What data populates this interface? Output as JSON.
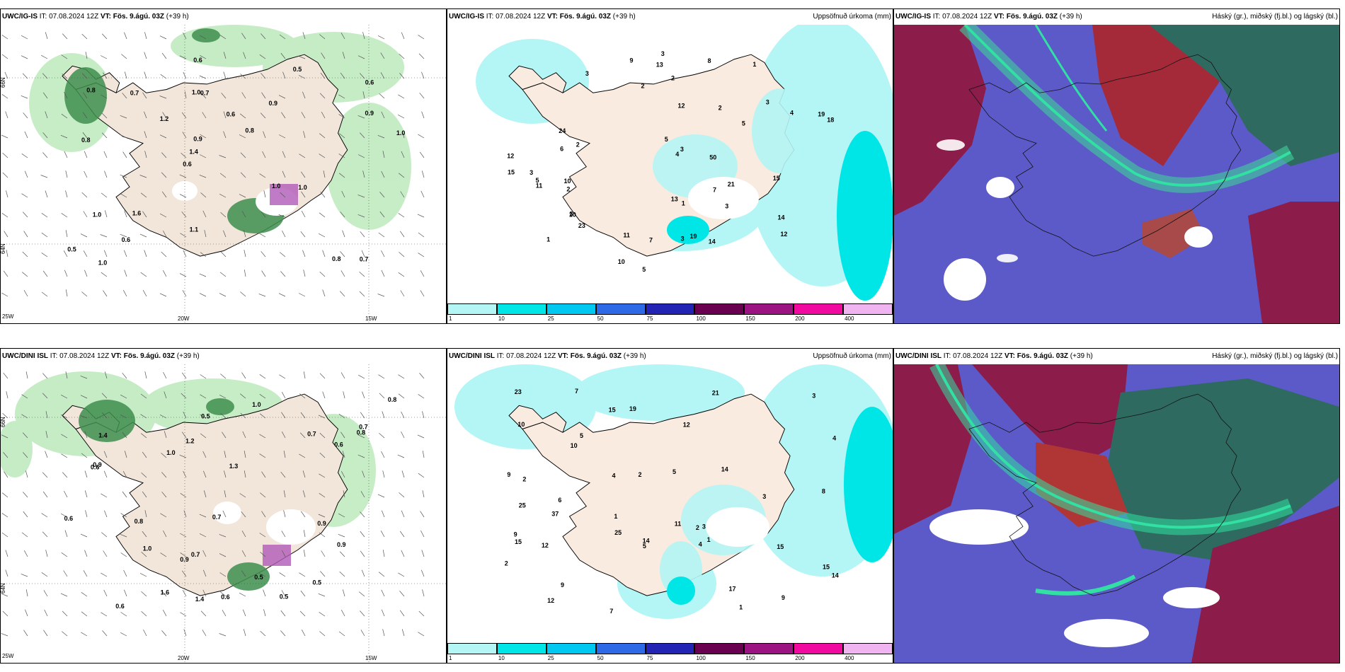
{
  "panels": [
    {
      "model": "UWC/IG-IS",
      "it": "07.08.2024 12Z",
      "vt": "Fös. 9.ágú. 03Z",
      "lead": "(+39 h)",
      "title_right": ""
    },
    {
      "model": "UWC/IG-IS",
      "it": "07.08.2024 12Z",
      "vt": "Fös. 9.ágú. 03Z",
      "lead": "(+39 h)",
      "title_right": "Uppsöfnuð úrkoma (mm)"
    },
    {
      "model": "UWC/IG-IS",
      "it": "07.08.2024 12Z",
      "vt": "Fös. 9.ágú. 03Z",
      "lead": "(+39 h)",
      "title_right": "Háský (gr.), miðský (fj.bl.) og lágský (bl.)"
    },
    {
      "model": "UWC/DINI ISL",
      "it": "07.08.2024 12Z",
      "vt": "Fös. 9.ágú. 03Z",
      "lead": "(+39 h)",
      "title_right": ""
    },
    {
      "model": "UWC/DINI ISL",
      "it": "07.08.2024 12Z",
      "vt": "Fös. 9.ágú. 03Z",
      "lead": "(+39 h)",
      "title_right": "Uppsöfnuð úrkoma (mm)"
    },
    {
      "model": "UWC/DINI ISL",
      "it": "07.08.2024 12Z",
      "vt": "Fös. 9.ágú. 03Z",
      "lead": "(+39 h)",
      "title_right": "Háský (gr.), miðský (fj.bl.) og lágský (bl.)"
    }
  ],
  "labels": {
    "it": "IT:",
    "vt": "VT:"
  },
  "coords": {
    "lat66": "66N",
    "lat64": "64N",
    "lon20": "20W",
    "lon15": "15W",
    "lon25": "25W"
  },
  "legend": {
    "ticks": [
      "1",
      "10",
      "25",
      "50",
      "75",
      "100",
      "150",
      "200",
      "400"
    ],
    "colors": [
      "#b4f5f5",
      "#00e6e6",
      "#00c8f0",
      "#2e6ae6",
      "#2323b4",
      "#690050",
      "#9b1482",
      "#f00aa0",
      "#f0b4f0"
    ]
  },
  "precip_ig": [
    "1",
    "1",
    "3",
    "3",
    "1",
    "2",
    "2",
    "3",
    "4",
    "5",
    "3",
    "3",
    "3",
    "4",
    "5",
    "9",
    "12",
    "12",
    "10",
    "10",
    "14",
    "13",
    "2",
    "3",
    "5",
    "11",
    "5",
    "8",
    "12",
    "21",
    "24",
    "23",
    "19",
    "13",
    "14",
    "11",
    "19",
    "50",
    "2",
    "15",
    "18",
    "2",
    "7",
    "10",
    "15",
    "6",
    "7",
    "3"
  ],
  "precip_dini": [
    "1",
    "2",
    "3",
    "4",
    "1",
    "2",
    "3",
    "3",
    "4",
    "5",
    "9",
    "9",
    "12",
    "14",
    "15",
    "15",
    "14",
    "15",
    "7",
    "10",
    "9",
    "2",
    "5",
    "12",
    "23",
    "21",
    "17",
    "25",
    "37",
    "14",
    "8",
    "25",
    "19",
    "10",
    "11",
    "7",
    "1",
    "2",
    "9",
    "5",
    "6",
    "12",
    "4",
    "15"
  ],
  "cloud_ig": [
    "0.7",
    "0.8",
    "0.6",
    "0.6",
    "0.9",
    "1.0",
    "1.0",
    "0.6",
    "1.0",
    "1.2",
    "0.5",
    "0.6",
    "0.7",
    "0.8",
    "1.0",
    "0.8",
    "0.6",
    "1.0",
    "1.0",
    "0.9",
    "1.4",
    "1.1",
    "0.9",
    "0.7",
    "0.5",
    "1.6",
    "0.8"
  ],
  "cloud_dini": [
    "0.9",
    "0.7",
    "1.0",
    "0.6",
    "0.5",
    "1.6",
    "0.8",
    "0.7",
    "0.5",
    "0.6",
    "1.4",
    "0.7",
    "0.8",
    "0.7",
    "0.9",
    "0.5",
    "0.8",
    "0.6",
    "0.5",
    "0.9",
    "0.6",
    "1.3",
    "1.4",
    "0.9",
    "1.0",
    "0.6",
    "1.2",
    "1.0"
  ]
}
